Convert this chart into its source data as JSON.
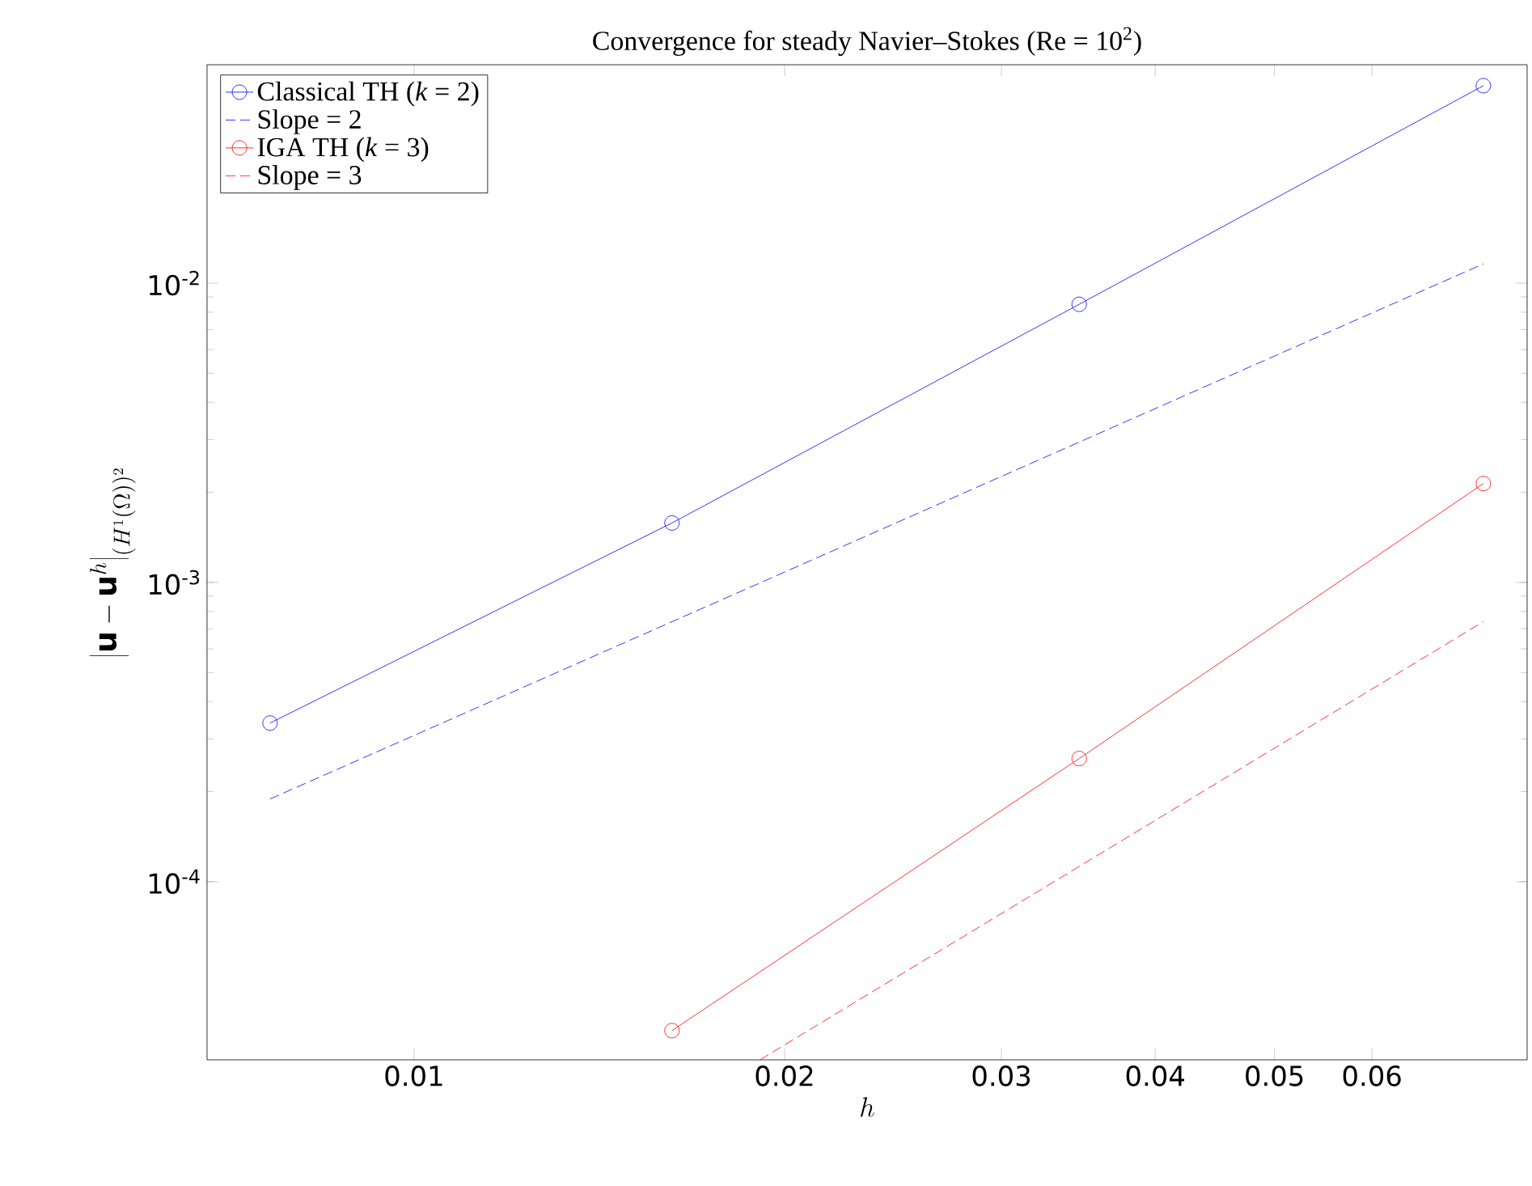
{
  "chart_data": {
    "type": "line",
    "title": "Convergence for steady Navier–Stokes (Re = 10$^{2}$)",
    "xlabel": "h",
    "ylabel": "\\left|\\mathbf{u}-\\mathbf{u}^h\\right|_{(H^1(\\Omega))^2}",
    "log": "xy",
    "xlim": [
      0.00679,
      0.0802
    ],
    "ylim": [
      2.54e-05,
      0.0537
    ],
    "xticks": [
      0.01,
      0.02,
      0.03,
      0.04,
      0.05,
      0.06
    ],
    "yticks": [
      {
        "value": 0.0001,
        "label": "10$^{-4}$"
      },
      {
        "value": 0.001,
        "label": "10$^{-3}$"
      },
      {
        "value": 0.01,
        "label": "10$^{-2}$"
      }
    ],
    "legend": "top left",
    "grid": false,
    "series": [
      {
        "name": "Classical TH (*k* = 2)",
        "color": "#0000ff",
        "marker": "circle",
        "line_style": "solid",
        "x": [
          0.00764,
          0.0162,
          0.0347,
          0.0739
        ],
        "values": [
          0.000339,
          0.00158,
          0.0085,
          0.0457
        ]
      },
      {
        "name": "Slope = 2",
        "color": "#0000ff",
        "marker": "none",
        "line_style": "dashed",
        "x": [
          0.00764,
          0.0739
        ],
        "values": [
          0.000189,
          0.0116
        ]
      },
      {
        "name": "IGA TH (*k* = 3)",
        "color": "#ff0000",
        "marker": "circle",
        "line_style": "solid",
        "x": [
          0.0162,
          0.0347,
          0.0739
        ],
        "values": [
          3.18e-05,
          0.000258,
          0.00214
        ]
      },
      {
        "name": "Slope = 3",
        "color": "#ff0000",
        "marker": "none",
        "line_style": "dashed",
        "x": [
          0.0191,
          0.0739
        ],
        "values": [
          2.54e-05,
          0.00074
        ]
      }
    ]
  }
}
